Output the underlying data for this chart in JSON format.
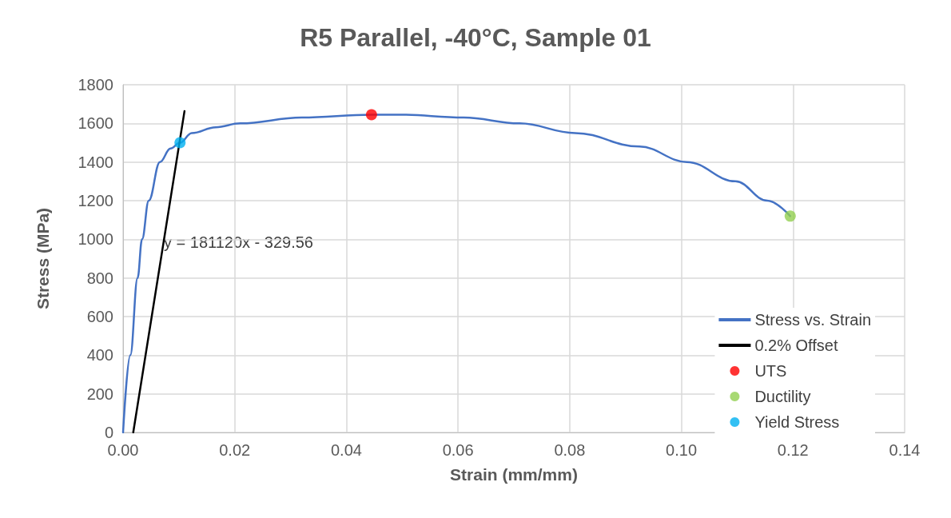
{
  "chart_data": {
    "type": "line",
    "title": "R5 Parallel, -40°C, Sample 01",
    "xlabel": "Strain (mm/mm)",
    "ylabel": "Stress (MPa)",
    "xlim": [
      0,
      0.14
    ],
    "xticks": [
      {
        "value": 0,
        "label": "0.00"
      },
      {
        "value": 0.02,
        "label": "0.02"
      },
      {
        "value": 0.04,
        "label": "0.04"
      },
      {
        "value": 0.06,
        "label": "0.06"
      },
      {
        "value": 0.08,
        "label": "0.08"
      },
      {
        "value": 0.1,
        "label": "0.10"
      },
      {
        "value": 0.12,
        "label": "0.12"
      },
      {
        "value": 0.14,
        "label": "0.14"
      }
    ],
    "ylim": [
      0,
      1800
    ],
    "yticks": [
      0,
      200,
      400,
      600,
      800,
      1000,
      1200,
      1400,
      1600,
      1800
    ],
    "grid": true,
    "legend": "bottom right",
    "marker": "none",
    "line_style": "solid",
    "annotations": [
      "y = 181120x - 329.56"
    ],
    "series": [
      {
        "name": "Stress vs. Strain",
        "color": "#4472c4",
        "x": [
          0,
          0.0013,
          0.0026,
          0.0034,
          0.0046,
          0.0066,
          0.0085,
          0.0102,
          0.0123,
          0.0166,
          0.021,
          0.032,
          0.0445,
          0.0495,
          0.061,
          0.071,
          0.081,
          0.0925,
          0.101,
          0.1097,
          0.1154,
          0.1195
        ],
        "values": [
          0,
          400,
          800,
          1000,
          1200,
          1400,
          1470,
          1500,
          1550,
          1580,
          1600,
          1630,
          1645,
          1645,
          1630,
          1600,
          1550,
          1480,
          1400,
          1300,
          1200,
          1120
        ]
      },
      {
        "name": "0.2% Offset",
        "color": "#000000",
        "x": [
          0.00182,
          0.011
        ],
        "values": [
          0,
          1663
        ]
      },
      {
        "name": "UTS",
        "type": "scatter",
        "marker": "circle",
        "color": "#ff0000",
        "x": [
          0.0445
        ],
        "values": [
          1645
        ]
      },
      {
        "name": "Ductility",
        "type": "scatter",
        "marker": "circle",
        "color": "#92d050",
        "x": [
          0.1195
        ],
        "values": [
          1120
        ]
      },
      {
        "name": "Yield Stress",
        "type": "scatter",
        "marker": "circle",
        "color": "#00b0f0",
        "x": [
          0.0102
        ],
        "values": [
          1500
        ]
      }
    ]
  }
}
